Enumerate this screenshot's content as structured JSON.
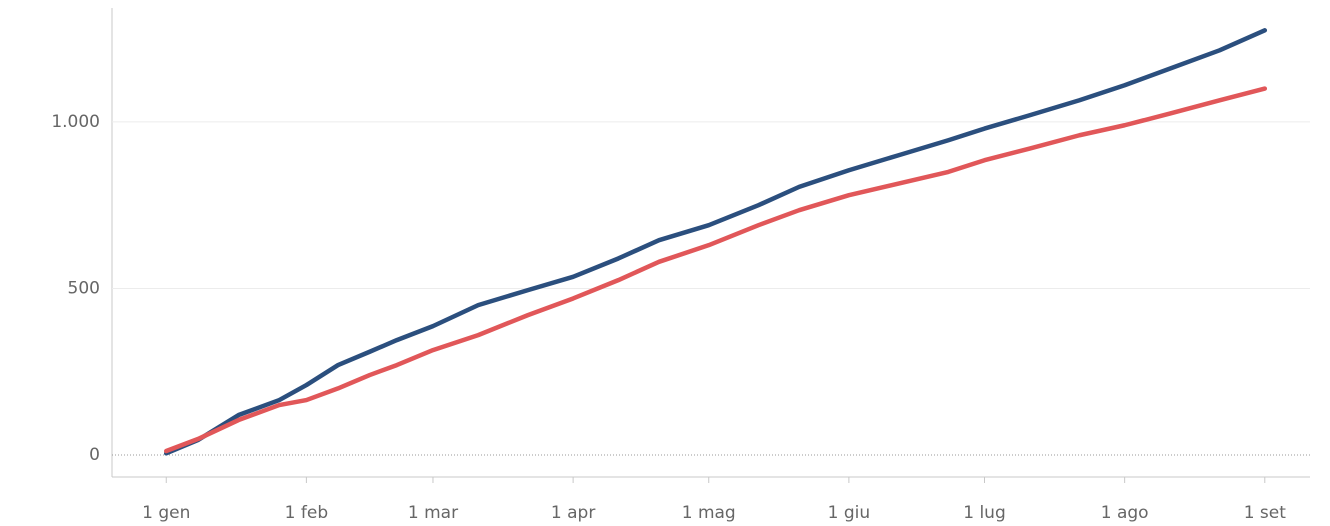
{
  "chart_data": {
    "type": "line",
    "x": [
      0,
      7,
      16,
      25,
      31,
      38,
      45,
      51,
      59,
      69,
      80,
      90,
      100,
      109,
      120,
      131,
      140,
      151,
      162,
      173,
      181,
      191,
      202,
      212,
      222,
      233,
      243
    ],
    "series": [
      {
        "color": "#2b4f7e",
        "values": [
          5,
          45,
          120,
          165,
          210,
          270,
          310,
          345,
          387,
          450,
          495,
          535,
          590,
          645,
          690,
          750,
          805,
          855,
          900,
          945,
          980,
          1020,
          1065,
          1110,
          1160,
          1215,
          1275
        ]
      },
      {
        "color": "#e15759",
        "values": [
          12,
          48,
          105,
          150,
          165,
          200,
          240,
          270,
          315,
          360,
          420,
          470,
          525,
          580,
          630,
          690,
          735,
          780,
          815,
          850,
          885,
          920,
          960,
          990,
          1025,
          1065,
          1100
        ]
      }
    ],
    "xlim": [
      -12,
      253
    ],
    "xticks": [
      {
        "value": 0,
        "label": "1 gen"
      },
      {
        "value": 31,
        "label": "1 feb"
      },
      {
        "value": 59,
        "label": "1 mar"
      },
      {
        "value": 90,
        "label": "1 apr"
      },
      {
        "value": 120,
        "label": "1 mag"
      },
      {
        "value": 151,
        "label": "1 giu"
      },
      {
        "value": 181,
        "label": "1 lug"
      },
      {
        "value": 212,
        "label": "1 ago"
      },
      {
        "value": 243,
        "label": "1 set"
      }
    ],
    "ylim": [
      -66,
      1342
    ],
    "yticks": [
      0,
      500,
      {
        "value": 1000,
        "label": "1.000"
      }
    ],
    "grid": true
  }
}
